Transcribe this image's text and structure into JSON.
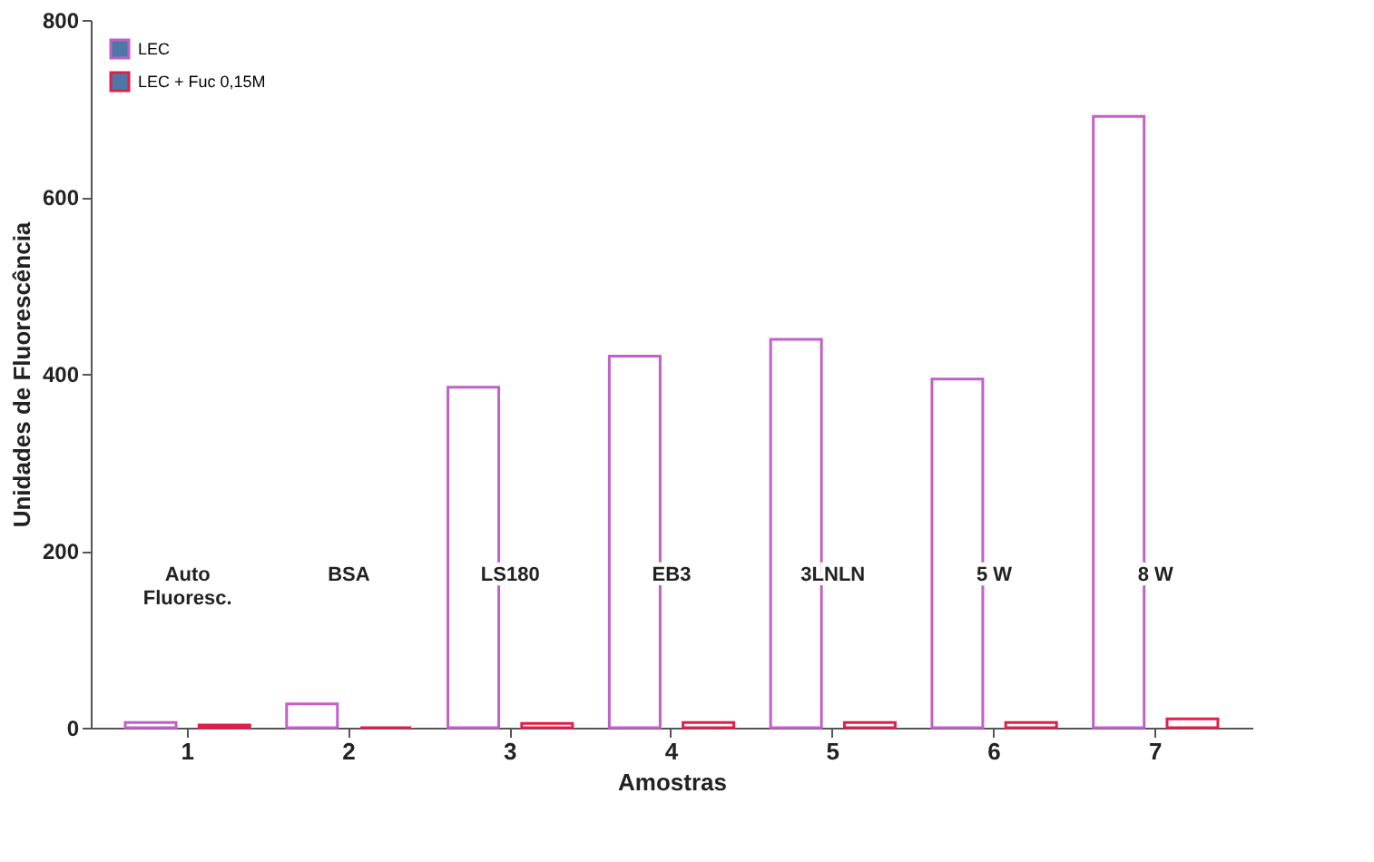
{
  "chart_data": {
    "type": "bar",
    "xlabel": "Amostras",
    "ylabel": "Unidades de Fluorescência",
    "categories": [
      "1",
      "2",
      "3",
      "4",
      "5",
      "6",
      "7"
    ],
    "series": [
      {
        "name": "LEC",
        "color": "#c060c8",
        "values": [
          6,
          27,
          385,
          420,
          439,
          394,
          691
        ]
      },
      {
        "name": "LEC + Fuc 0,15M",
        "color": "#e0204a",
        "values": [
          3,
          0,
          5,
          6,
          6,
          6,
          10
        ]
      }
    ],
    "ylim": [
      0,
      800
    ],
    "yticks": [
      0,
      200,
      400,
      600,
      800
    ],
    "grid": false,
    "legend": "top left",
    "annotations": [
      "Auto\nFluoresc.",
      "BSA",
      "LS180",
      "EB3",
      "3LNLN",
      "5 W",
      "8 W"
    ]
  }
}
